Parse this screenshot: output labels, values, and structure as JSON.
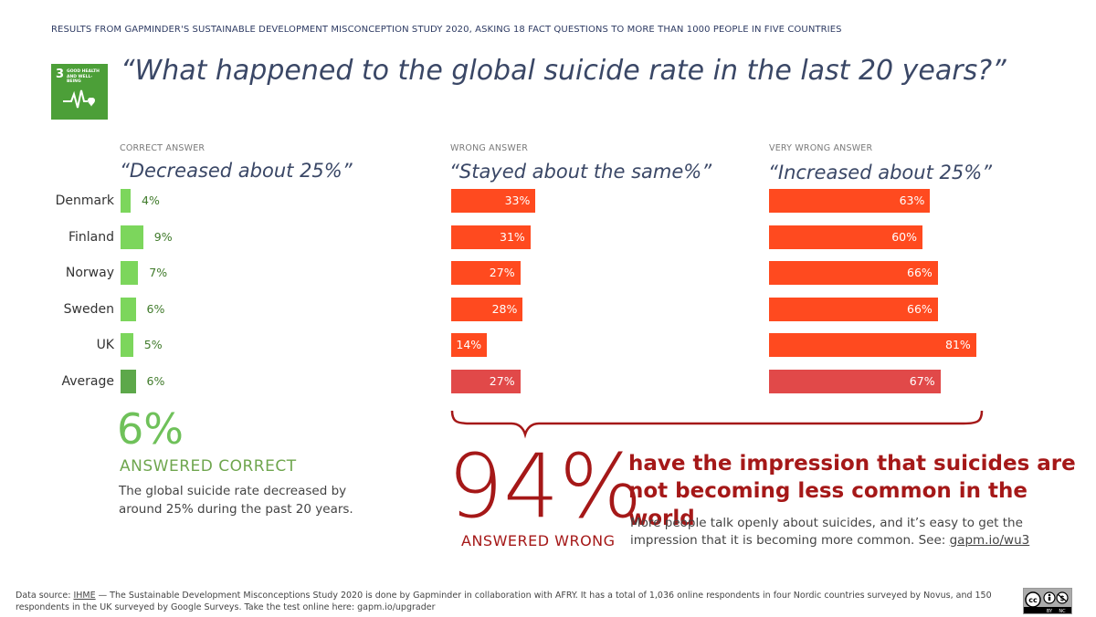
{
  "header_note": "RESULTS FROM GAPMINDER'S SUSTAINABLE DEVELOPMENT MISCONCEPTION STUDY 2020, ASKING 18 FACT QUESTIONS TO MORE THAN 1000 PEOPLE IN FIVE COUNTRIES",
  "sdg": {
    "number": "3",
    "label": "GOOD HEALTH AND WELL-BEING",
    "color": "#4c9f38"
  },
  "question": "“What happened to the global suicide rate in the last 20 years?”",
  "chart_data": {
    "type": "bar",
    "orientation": "horizontal",
    "categories": [
      "Denmark",
      "Finland",
      "Norway",
      "Sweden",
      "UK",
      "Average"
    ],
    "xlim": [
      0,
      100
    ],
    "unit": "%",
    "series": [
      {
        "name": "Decreased about 25%",
        "group": "CORRECT ANSWER",
        "answer_text": "“Decreased about 25%”",
        "values": [
          4,
          9,
          7,
          6,
          5,
          6
        ],
        "labels": [
          "4%",
          "9%",
          "7%",
          "6%",
          "5%",
          "6%"
        ],
        "color": "#7cd65c",
        "average_color": "#5da84a"
      },
      {
        "name": "Stayed about the same%",
        "group": "WRONG ANSWER",
        "answer_text": "“Stayed about the same%”",
        "values": [
          33,
          31,
          27,
          28,
          14,
          27
        ],
        "labels": [
          "33%",
          "31%",
          "27%",
          "28%",
          "14%",
          "27%"
        ],
        "color": "#ff4a1f",
        "average_color": "#e14949"
      },
      {
        "name": "Increased about 25%",
        "group": "VERY WRONG ANSWER",
        "answer_text": "“Increased about 25%”",
        "values": [
          63,
          60,
          66,
          66,
          81,
          67
        ],
        "labels": [
          "63%",
          "60%",
          "66%",
          "66%",
          "81%",
          "67%"
        ],
        "color": "#ff4a1f",
        "average_color": "#e14949"
      }
    ]
  },
  "summary": {
    "correct_pct": "6%",
    "correct_label": "ANSWERED CORRECT",
    "correct_desc": "The global suicide rate decreased by around 25% during the past 20 years.",
    "wrong_pct": "94%",
    "wrong_label": "ANSWERED WRONG",
    "impression": "have the impression that suicides are not becoming less common in the world",
    "wrong_desc": "More people talk openly about suicides, and it’s easy to get the impression that it is becoming more common. See: ",
    "wrong_link": "gapm.io/wu3"
  },
  "footer": {
    "source_prefix": "Data source: ",
    "source_link": "IHME",
    "text": " — The Sustainable Development Misconceptions Study 2020 is done by Gapminder in collaboration with AFRY. It has a total of 1,036 online respondents in four Nordic countries surveyed by Novus, and 150 respondents in the UK surveyed by Google Surveys. Take the test online here: gapm.io/upgrader"
  },
  "license": {
    "by": "BY",
    "nc": "NC"
  }
}
